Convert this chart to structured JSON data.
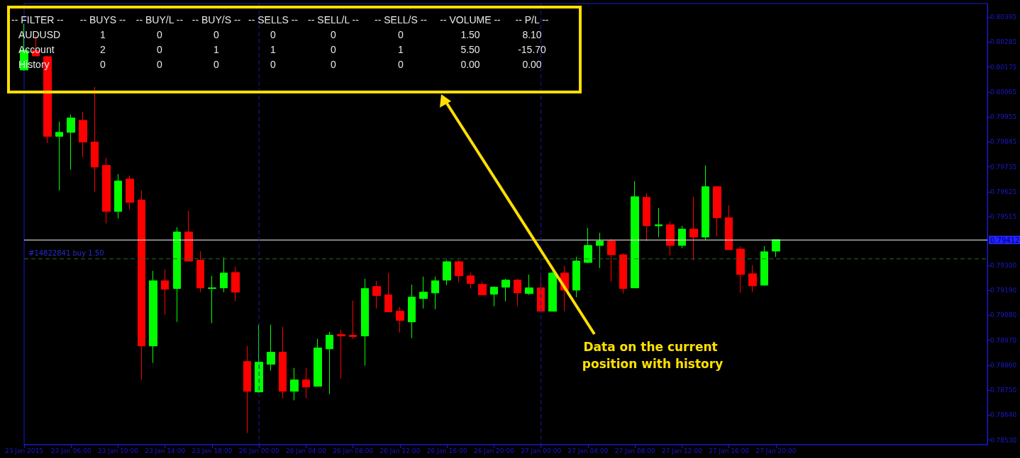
{
  "chart_data": {
    "type": "candlestick",
    "categories": [
      "23 Jan 2015",
      null,
      null,
      null,
      "23 Jan 06:00",
      null,
      null,
      null,
      "23 Jan 10:00",
      null,
      null,
      null,
      "23 Jan 14:00",
      null,
      null,
      null,
      "23 Jan 18:00",
      null,
      null,
      null,
      "26 Jan 00:00",
      null,
      null,
      null,
      "26 Jan 04:00",
      null,
      null,
      null,
      "26 Jan 08:00",
      null,
      null,
      null,
      "26 Jan 12:00",
      null,
      null,
      null,
      "26 Jan 16:00",
      null,
      null,
      null,
      "26 Jan 20:00",
      null,
      null,
      null,
      "27 Jan 00:00",
      null,
      null,
      null,
      "27 Jan 04:00",
      null,
      null,
      null,
      "27 Jan 08:00",
      null,
      null,
      null,
      "27 Jan 12:00",
      null,
      null,
      null,
      "27 Jan 16:00",
      null,
      null,
      null,
      "27 Jan 20:00",
      null,
      null,
      null,
      null,
      null,
      null,
      null,
      null,
      null,
      null,
      null,
      null,
      null,
      null,
      null,
      null,
      null,
      null
    ],
    "ohlc": [
      [
        0.80162,
        0.80365,
        0.80159,
        0.80249
      ],
      [
        0.80249,
        0.80315,
        0.80221,
        0.80224
      ],
      [
        0.80221,
        0.80224,
        0.7984,
        0.79869
      ],
      [
        0.79869,
        0.79934,
        0.79631,
        0.79887
      ],
      [
        0.79887,
        0.79965,
        0.79722,
        0.7995
      ],
      [
        0.7994,
        0.79978,
        0.79778,
        0.79844
      ],
      [
        0.79844,
        0.80087,
        0.79625,
        0.79734
      ],
      [
        0.79741,
        0.79775,
        0.79485,
        0.79538
      ],
      [
        0.79538,
        0.79703,
        0.79507,
        0.79672
      ],
      [
        0.79681,
        0.79697,
        0.79547,
        0.79578
      ],
      [
        0.79588,
        0.79631,
        0.78795,
        0.78945
      ],
      [
        0.78945,
        0.79276,
        0.7887,
        0.79232
      ],
      [
        0.79232,
        0.79282,
        0.79082,
        0.79195
      ],
      [
        0.79198,
        0.79469,
        0.79051,
        0.79447
      ],
      [
        0.79447,
        0.79541,
        0.79319,
        0.79319
      ],
      [
        0.79323,
        0.79363,
        0.79182,
        0.79201
      ],
      [
        0.79198,
        0.79254,
        0.79045,
        0.79201
      ],
      [
        0.79201,
        0.79335,
        0.79182,
        0.79266
      ],
      [
        0.79269,
        0.79294,
        0.79142,
        0.79182
      ],
      [
        0.78876,
        0.78945,
        0.78561,
        0.78745
      ],
      [
        0.78742,
        0.79039,
        0.78739,
        0.78873
      ],
      [
        0.78864,
        0.79039,
        0.78836,
        0.78917
      ],
      [
        0.78917,
        0.79029,
        0.78714,
        0.78745
      ],
      [
        0.78745,
        0.78848,
        0.78705,
        0.78795
      ],
      [
        0.78795,
        0.78848,
        0.78714,
        0.78764
      ],
      [
        0.78767,
        0.78976,
        0.78767,
        0.78936
      ],
      [
        0.78932,
        0.79007,
        0.78733,
        0.78992
      ],
      [
        0.78995,
        0.79017,
        0.78801,
        0.78989
      ],
      [
        0.78992,
        0.79145,
        0.78976,
        0.78986
      ],
      [
        0.78989,
        0.79241,
        0.78858,
        0.79198
      ],
      [
        0.79207,
        0.79232,
        0.7911,
        0.79167
      ],
      [
        0.7917,
        0.79266,
        0.79095,
        0.79095
      ],
      [
        0.79098,
        0.79117,
        0.79004,
        0.79057
      ],
      [
        0.79051,
        0.79216,
        0.78979,
        0.7916
      ],
      [
        0.79154,
        0.79251,
        0.7911,
        0.79182
      ],
      [
        0.79179,
        0.79251,
        0.79107,
        0.79232
      ],
      [
        0.79235,
        0.79323,
        0.79213,
        0.79316
      ],
      [
        0.79316,
        0.79323,
        0.79226,
        0.79254
      ],
      [
        0.79254,
        0.79269,
        0.79198,
        0.7922
      ],
      [
        0.79216,
        0.79229,
        0.7917,
        0.7917
      ],
      [
        0.79173,
        0.79207,
        0.7912,
        0.79204
      ],
      [
        0.79204,
        0.79241,
        0.79142,
        0.79235
      ],
      [
        0.79235,
        0.79241,
        0.7912,
        0.79179
      ],
      [
        0.79176,
        0.7926,
        0.7917,
        0.79201
      ],
      [
        0.79201,
        0.79248,
        0.79092,
        0.79098
      ],
      [
        0.79098,
        0.79273,
        0.79098,
        0.79266
      ],
      [
        0.79266,
        0.79298,
        0.79098,
        0.79191
      ],
      [
        0.79191,
        0.79338,
        0.7916,
        0.79319
      ],
      [
        0.79313,
        0.79466,
        0.7931,
        0.79388
      ],
      [
        0.79388,
        0.79444,
        0.79288,
        0.79407
      ],
      [
        0.79407,
        0.79416,
        0.79229,
        0.79347
      ],
      [
        0.79347,
        0.79354,
        0.79176,
        0.79198
      ],
      [
        0.79201,
        0.79672,
        0.79201,
        0.79603
      ],
      [
        0.796,
        0.79619,
        0.79407,
        0.79475
      ],
      [
        0.79475,
        0.79553,
        0.79425,
        0.79479
      ],
      [
        0.79479,
        0.79494,
        0.79344,
        0.79388
      ],
      [
        0.79388,
        0.79475,
        0.79376,
        0.7946
      ],
      [
        0.7946,
        0.79603,
        0.79323,
        0.79425
      ],
      [
        0.79425,
        0.79741,
        0.79413,
        0.79647
      ],
      [
        0.79647,
        0.79647,
        0.79429,
        0.7951
      ],
      [
        0.7951,
        0.79566,
        0.79369,
        0.79369
      ],
      [
        0.79372,
        0.79385,
        0.79179,
        0.7926
      ],
      [
        0.79263,
        0.79301,
        0.79182,
        0.7921
      ],
      [
        0.79213,
        0.79385,
        0.7921,
        0.7936
      ],
      [
        0.79363,
        0.79413,
        0.79338,
        0.79413
      ],
      null,
      null,
      null,
      null,
      null,
      null,
      null,
      null,
      null,
      null,
      null,
      null,
      null,
      null,
      null,
      null,
      null,
      null
    ],
    "colors": [
      "#00ff00",
      "#ff0000",
      "#ff0000",
      "#00ff00",
      "#00ff00",
      "#ff0000",
      "#ff0000",
      "#ff0000",
      "#00ff00",
      "#ff0000",
      "#ff0000",
      "#00ff00",
      "#ff0000",
      "#00ff00",
      "#ff0000",
      "#ff0000",
      "#00ff00",
      "#00ff00",
      "#ff0000",
      "#ff0000",
      "#00ff00",
      "#00ff00",
      "#ff0000",
      "#00ff00",
      "#ff0000",
      "#00ff00",
      "#00ff00",
      "#ff0000",
      "#ff0000",
      "#00ff00",
      "#ff0000",
      "#ff0000",
      "#ff0000",
      "#00ff00",
      "#00ff00",
      "#00ff00",
      "#00ff00",
      "#ff0000",
      "#ff0000",
      "#ff0000",
      "#00ff00",
      "#00ff00",
      "#ff0000",
      "#00ff00",
      "#ff0000",
      "#00ff00",
      "#ff0000",
      "#00ff00",
      "#00ff00",
      "#00ff00",
      "#ff0000",
      "#ff0000",
      "#00ff00",
      "#ff0000",
      "#00ff00",
      "#ff0000",
      "#00ff00",
      "#ff0000",
      "#00ff00",
      "#ff0000",
      "#ff0000",
      "#ff0000",
      "#ff0000",
      "#00ff00",
      "#00ff00",
      null,
      null,
      null,
      null,
      null,
      null,
      null,
      null,
      null,
      null,
      null,
      null,
      null,
      null,
      null,
      null,
      null,
      null
    ],
    "ylim": [
      0.7851,
      0.80455
    ],
    "yticks": [
      0.80395,
      0.80285,
      0.80175,
      0.80065,
      0.79955,
      0.79845,
      0.79735,
      0.79625,
      0.79515,
      {
        "value": 0.793,
        "label": "0.79300"
      },
      {
        "value": 0.7919,
        "label": "0.79190"
      },
      {
        "value": 0.7908,
        "label": "0.79080"
      },
      {
        "value": 0.7897,
        "label": "0.78970"
      },
      {
        "value": 0.7886,
        "label": "0.78860"
      },
      {
        "value": 0.7875,
        "label": "0.78750"
      },
      {
        "value": 0.7864,
        "label": "0.78640"
      },
      {
        "value": 0.7853,
        "label": "0.78530"
      }
    ],
    "ref_lines": [
      {
        "axis": "y",
        "value": 0.79412,
        "label": "0.79412",
        "color": "#ffffff",
        "line_style": "solid"
      },
      {
        "axis": "y",
        "value": 0.79329,
        "label": "#14822841 buy 1.50",
        "color": "#1f6b1f",
        "line_style": "dashed"
      },
      {
        "axis": "x",
        "value": "26 Jan 00:00",
        "label": null,
        "color": "#1a1aa0",
        "line_style": "dashed"
      },
      {
        "axis": "x",
        "value": "27 Jan 00:00",
        "label": null,
        "color": "#1a1aa0",
        "line_style": "dashed"
      }
    ],
    "annotations": [
      "-- FILTER --",
      "-- BUYS --",
      "-- BUY/L --",
      "-- BUY/S --",
      "-- SELLS --",
      "-- SELL/L --",
      "-- SELL/S --",
      "-- VOLUME --",
      "-- P/L --",
      "AUDUSD",
      "1",
      "0",
      "0",
      "0",
      "0",
      "0",
      "1.50",
      "8.10",
      "Account",
      "2",
      "0",
      "1",
      "1",
      "0",
      "1",
      "5.50",
      "-15.70",
      "History",
      "0",
      "0",
      "0",
      "0",
      "0",
      "0",
      "0.00",
      "0.00",
      "Data on the current position with history"
    ],
    "grid": false
  }
}
